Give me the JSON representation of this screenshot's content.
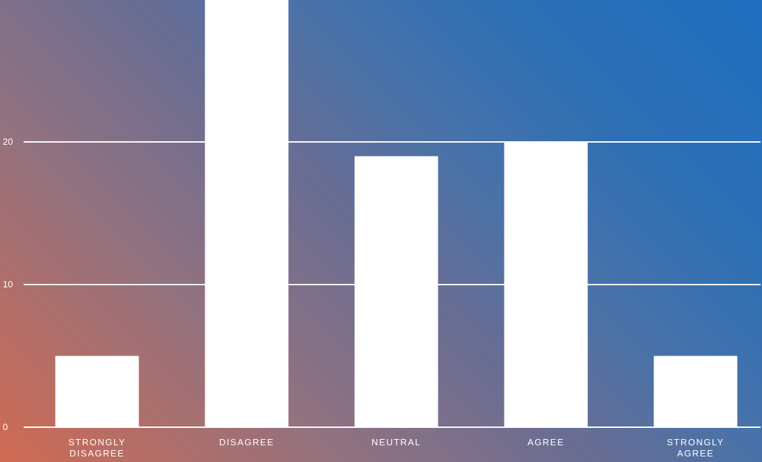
{
  "colors": {
    "bar": "#ffffff",
    "gridline": "#ffffff",
    "text": "#ffffff",
    "background_start": "#d06a52",
    "background_end": "#1f6fc0"
  },
  "chart_data": {
    "type": "bar",
    "categories": [
      [
        "STRONGLY",
        "DISAGREE"
      ],
      [
        "DISAGREE"
      ],
      [
        "NEUTRAL"
      ],
      [
        "AGREE"
      ],
      [
        "STRONGLY",
        "AGREE"
      ]
    ],
    "values": [
      5,
      30,
      19,
      20,
      5
    ],
    "title": "",
    "xlabel": "",
    "ylabel": "",
    "ylim": [
      0,
      30
    ],
    "yticks": [
      "0",
      "10",
      "20"
    ],
    "ytick_values": [
      0,
      10,
      20
    ],
    "grid": true,
    "legend": "none"
  }
}
